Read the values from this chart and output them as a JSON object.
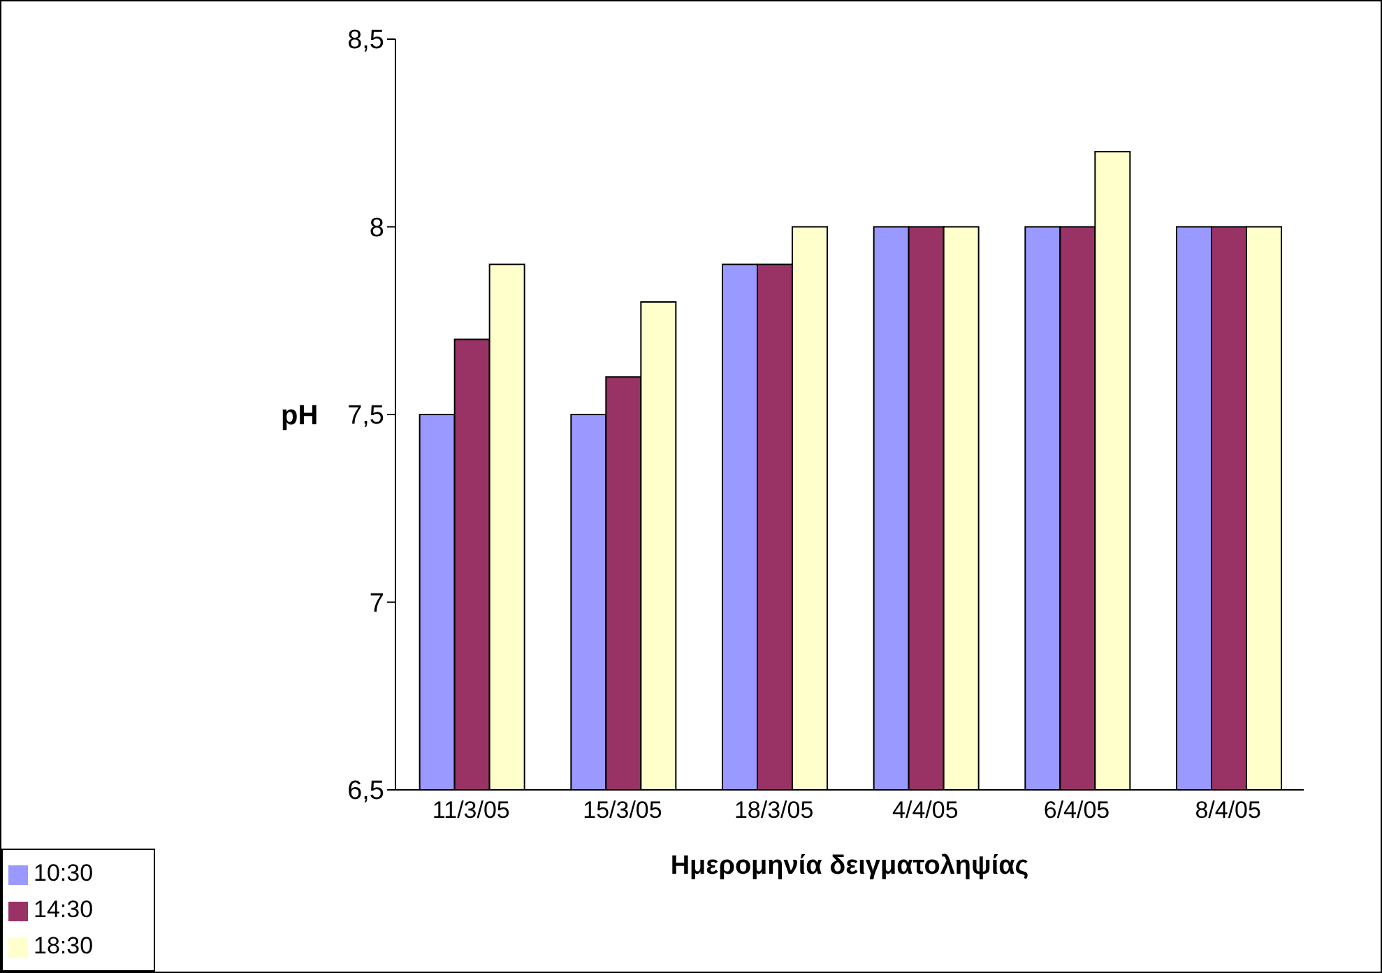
{
  "chart_data": {
    "type": "bar",
    "xlabel": "Ημερομηνία δειγματοληψίας",
    "ylabel": "pH",
    "categories": [
      "11/3/05",
      "15/3/05",
      "18/3/05",
      "4/4/05",
      "6/4/05",
      "8/4/05"
    ],
    "series": [
      {
        "name": "10:30",
        "color": "#9999ff",
        "values": [
          7.5,
          7.5,
          7.9,
          8,
          8,
          8
        ]
      },
      {
        "name": "14:30",
        "color": "#993366",
        "values": [
          7.7,
          7.6,
          7.9,
          8,
          8,
          8
        ]
      },
      {
        "name": "18:30",
        "color": "#ffffcc",
        "values": [
          7.9,
          7.8,
          8,
          8,
          8.2,
          8
        ]
      }
    ],
    "ylim": [
      6.5,
      8.5
    ],
    "yticks": [
      {
        "value": 6.5,
        "label": "6,5"
      },
      7,
      {
        "value": 7.5,
        "label": "7,5"
      },
      8,
      {
        "value": 8.5,
        "label": "8,5"
      }
    ],
    "grid": false,
    "legend": "bottom left"
  }
}
